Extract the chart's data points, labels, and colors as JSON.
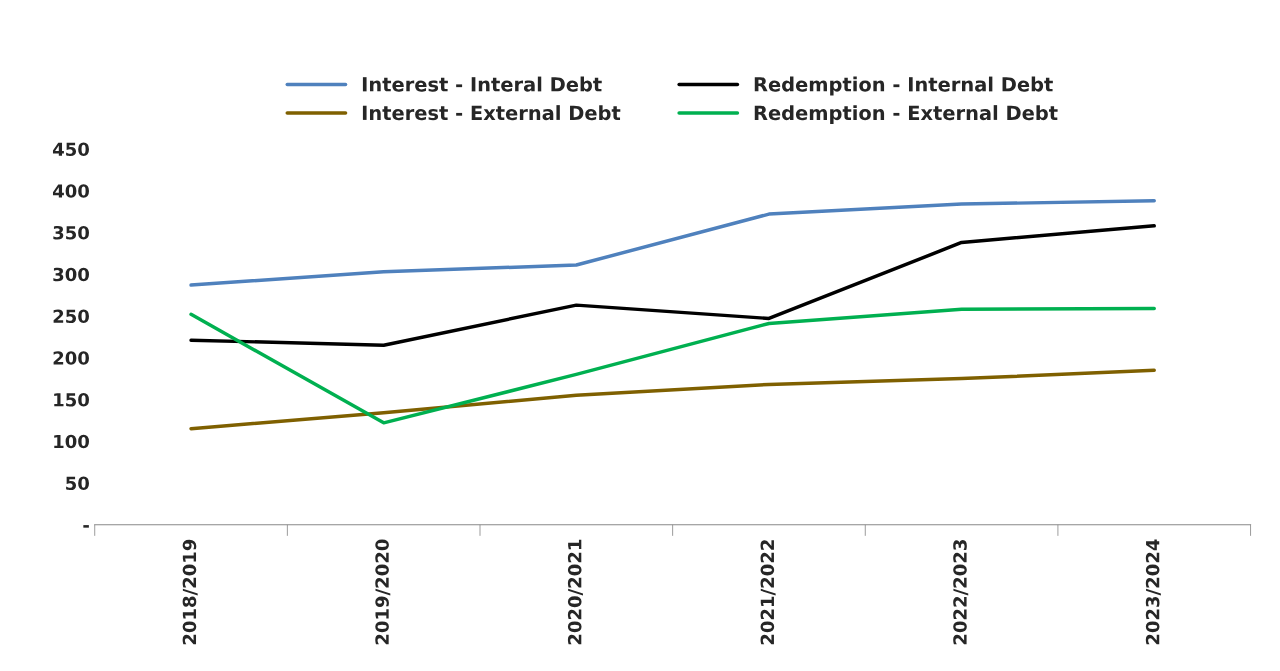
{
  "chart_data": {
    "type": "line",
    "categories": [
      "2018/2019",
      "2019/2020",
      "2020/2021",
      "2021/2022",
      "2022/2023",
      "2023/2024"
    ],
    "series": [
      {
        "name": "Interest - Interal Debt",
        "color": "#4f81bd",
        "values": [
          287,
          303,
          311,
          372,
          384,
          388
        ]
      },
      {
        "name": "Interest - External Debt",
        "color": "#7f6000",
        "values": [
          115,
          134,
          155,
          168,
          175,
          185
        ]
      },
      {
        "name": "Redemption - Internal Debt",
        "color": "#000000",
        "values": [
          221,
          215,
          263,
          247,
          338,
          358
        ]
      },
      {
        "name": "Redemption - External Debt",
        "color": "#00b050",
        "values": [
          252,
          122,
          180,
          241,
          258,
          259
        ]
      }
    ],
    "ylim": [
      0,
      450
    ],
    "yticks": [
      {
        "value": 0,
        "label": "-"
      },
      50,
      100,
      150,
      200,
      250,
      300,
      350,
      400,
      450
    ],
    "grid": false,
    "legend": "top",
    "marker": "none",
    "line_style": "solid"
  }
}
